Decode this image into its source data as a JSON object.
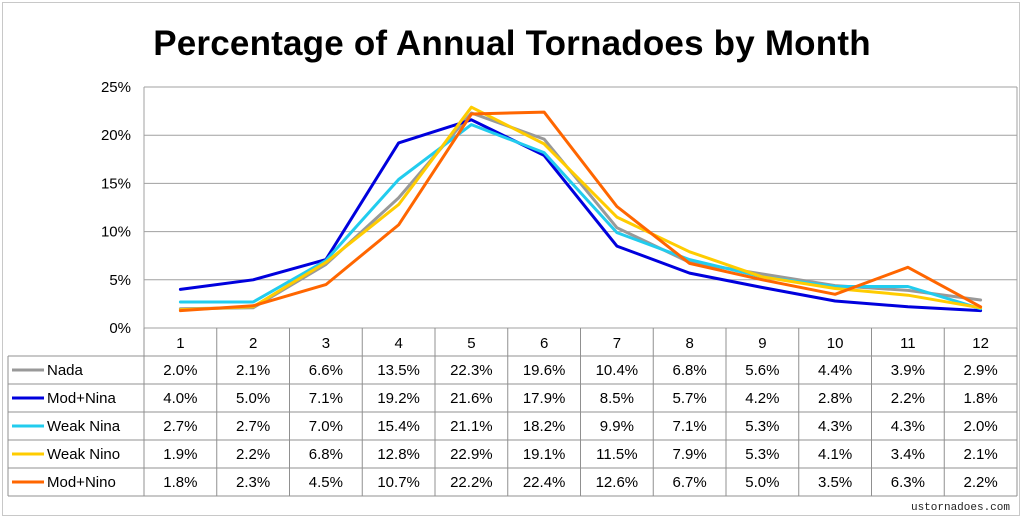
{
  "chart_data": {
    "type": "line",
    "title": "Percentage of Annual Tornadoes by Month",
    "categories": [
      "1",
      "2",
      "3",
      "4",
      "5",
      "6",
      "7",
      "8",
      "9",
      "10",
      "11",
      "12"
    ],
    "ylim": [
      0,
      25
    ],
    "yticks": [
      "0%",
      "5%",
      "10%",
      "15%",
      "20%",
      "25%"
    ],
    "grid": true,
    "legend": "data table",
    "series": [
      {
        "name": "Nada",
        "color": "#999999",
        "values": [
          2.0,
          2.1,
          6.6,
          13.5,
          22.3,
          19.6,
          10.4,
          6.8,
          5.6,
          4.4,
          3.9,
          2.9
        ],
        "labels": [
          "2.0%",
          "2.1%",
          "6.6%",
          "13.5%",
          "22.3%",
          "19.6%",
          "10.4%",
          "6.8%",
          "5.6%",
          "4.4%",
          "3.9%",
          "2.9%"
        ]
      },
      {
        "name": "Mod+Nina",
        "color": "#0000dd",
        "values": [
          4.0,
          5.0,
          7.1,
          19.2,
          21.6,
          17.9,
          8.5,
          5.7,
          4.2,
          2.8,
          2.2,
          1.8
        ],
        "labels": [
          "4.0%",
          "5.0%",
          "7.1%",
          "19.2%",
          "21.6%",
          "17.9%",
          "8.5%",
          "5.7%",
          "4.2%",
          "2.8%",
          "2.2%",
          "1.8%"
        ]
      },
      {
        "name": "Weak Nina",
        "color": "#22ccee",
        "values": [
          2.7,
          2.7,
          7.0,
          15.4,
          21.1,
          18.2,
          9.9,
          7.1,
          5.3,
          4.3,
          4.3,
          2.0
        ],
        "labels": [
          "2.7%",
          "2.7%",
          "7.0%",
          "15.4%",
          "21.1%",
          "18.2%",
          "9.9%",
          "7.1%",
          "5.3%",
          "4.3%",
          "4.3%",
          "2.0%"
        ]
      },
      {
        "name": "Weak Nino",
        "color": "#ffcc00",
        "values": [
          1.9,
          2.2,
          6.8,
          12.8,
          22.9,
          19.1,
          11.5,
          7.9,
          5.3,
          4.1,
          3.4,
          2.1
        ],
        "labels": [
          "1.9%",
          "2.2%",
          "6.8%",
          "12.8%",
          "22.9%",
          "19.1%",
          "11.5%",
          "7.9%",
          "5.3%",
          "4.1%",
          "3.4%",
          "2.1%"
        ]
      },
      {
        "name": "Mod+Nino",
        "color": "#ff6600",
        "values": [
          1.8,
          2.3,
          4.5,
          10.7,
          22.2,
          22.4,
          12.6,
          6.7,
          5.0,
          3.5,
          6.3,
          2.2
        ],
        "labels": [
          "1.8%",
          "2.3%",
          "4.5%",
          "10.7%",
          "22.2%",
          "22.4%",
          "12.6%",
          "6.7%",
          "5.0%",
          "3.5%",
          "6.3%",
          "2.2%"
        ]
      }
    ]
  },
  "watermark": "ustornadoes.com"
}
